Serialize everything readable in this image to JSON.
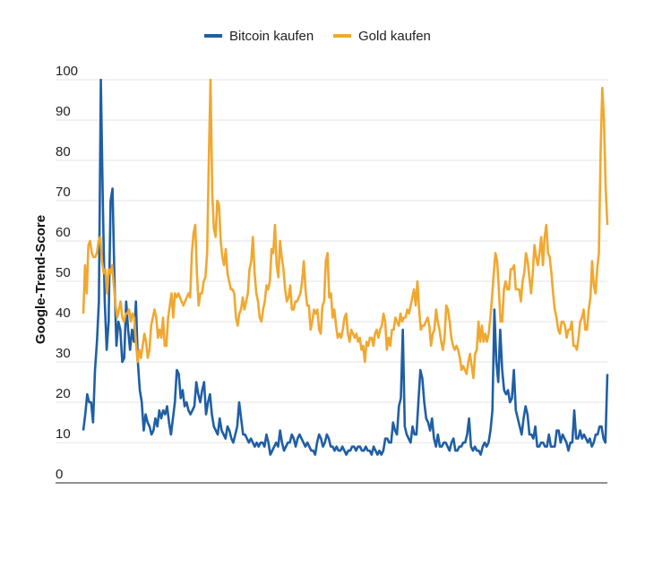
{
  "chart_data": {
    "type": "line",
    "ylabel": "Google-Trend-Score",
    "ylim": [
      0,
      100
    ],
    "yticks": [
      0,
      10,
      20,
      30,
      40,
      50,
      60,
      70,
      80,
      90,
      100
    ],
    "grid": true,
    "legend_position": "top-center",
    "series": [
      {
        "name": "Bitcoin kaufen",
        "color": "#1f5fa5",
        "values": [
          13,
          17,
          22,
          20,
          20,
          15,
          28,
          35,
          45,
          100,
          70,
          45,
          33,
          40,
          70,
          73,
          50,
          34,
          40,
          38,
          30,
          31,
          45,
          38,
          33,
          38,
          35,
          45,
          30,
          23,
          20,
          13,
          17,
          15,
          14,
          12,
          13,
          16,
          14,
          18,
          16,
          18,
          17,
          19,
          15,
          12,
          16,
          20,
          28,
          27,
          21,
          23,
          19,
          20,
          18,
          17,
          18,
          19,
          25,
          22,
          20,
          23,
          25,
          17,
          20,
          22,
          17,
          14,
          13,
          12,
          16,
          13,
          12,
          11,
          14,
          13,
          11,
          10,
          12,
          14,
          20,
          16,
          12,
          12,
          11,
          10,
          11,
          10,
          9,
          10,
          9,
          10,
          10,
          9,
          12,
          10,
          7,
          8,
          9,
          10,
          9,
          13,
          10,
          8,
          9,
          10,
          10,
          12,
          11,
          9,
          11,
          12,
          11,
          10,
          9,
          10,
          9,
          8,
          8,
          7,
          10,
          12,
          11,
          9,
          10,
          12,
          11,
          9,
          9,
          8,
          9,
          8,
          8,
          9,
          8,
          7,
          8,
          8,
          9,
          9,
          8,
          9,
          9,
          8,
          8,
          9,
          8,
          8,
          7,
          9,
          8,
          7,
          8,
          7,
          8,
          11,
          11,
          10,
          10,
          15,
          13,
          12,
          19,
          21,
          38,
          14,
          12,
          11,
          10,
          14,
          12,
          12,
          20,
          28,
          26,
          20,
          16,
          15,
          13,
          16,
          11,
          9,
          12,
          9,
          9,
          10,
          10,
          9,
          8,
          10,
          11,
          8,
          8,
          9,
          9,
          10,
          10,
          12,
          16,
          9,
          8,
          9,
          8,
          8,
          7,
          9,
          10,
          9,
          10,
          13,
          18,
          43,
          30,
          25,
          38,
          28,
          23,
          22,
          23,
          20,
          21,
          28,
          18,
          16,
          14,
          12,
          16,
          19,
          17,
          12,
          12,
          11,
          14,
          9,
          9,
          10,
          10,
          9,
          9,
          12,
          9,
          9,
          9,
          13,
          13,
          10,
          12,
          11,
          10,
          8,
          10,
          10,
          18,
          11,
          11,
          13,
          11,
          12,
          11,
          10,
          11,
          9,
          10,
          12,
          12,
          14,
          14,
          11,
          10,
          27
        ]
      },
      {
        "name": "Gold kaufen",
        "color": "#f0a830",
        "values": [
          42,
          54,
          47,
          59,
          60,
          57,
          56,
          56,
          57,
          60,
          61,
          55,
          52,
          53,
          47,
          53,
          52,
          54,
          49,
          44,
          41,
          43,
          45,
          41,
          40,
          42,
          42,
          43,
          40,
          42,
          41,
          35,
          30,
          33,
          31,
          34,
          37,
          35,
          31,
          33,
          39,
          41,
          43,
          41,
          36,
          38,
          36,
          41,
          34,
          34,
          41,
          44,
          47,
          41,
          47,
          46,
          47,
          46,
          45,
          44,
          45,
          46,
          47,
          46,
          57,
          62,
          64,
          52,
          44,
          47,
          47,
          50,
          51,
          57,
          80,
          100,
          72,
          63,
          61,
          70,
          69,
          60,
          56,
          54,
          58,
          52,
          50,
          48,
          48,
          47,
          41,
          39,
          42,
          43,
          46,
          43,
          45,
          47,
          53,
          55,
          61,
          52,
          47,
          45,
          41,
          40,
          43,
          45,
          49,
          48,
          50,
          58,
          57,
          64,
          54,
          51,
          60,
          56,
          53,
          48,
          45,
          46,
          49,
          43,
          43,
          45,
          45,
          46,
          47,
          50,
          55,
          48,
          44,
          44,
          38,
          40,
          43,
          42,
          43,
          38,
          37,
          44,
          45,
          55,
          57,
          46,
          47,
          41,
          43,
          39,
          36,
          37,
          36,
          38,
          41,
          42,
          37,
          35,
          38,
          37,
          36,
          37,
          35,
          36,
          33,
          34,
          30,
          35,
          34,
          36,
          36,
          34,
          37,
          38,
          36,
          38,
          39,
          42,
          40,
          33,
          36,
          34,
          38,
          38,
          41,
          40,
          39,
          42,
          40,
          41,
          41,
          43,
          42,
          44,
          46,
          48,
          44,
          50,
          43,
          38,
          39,
          39,
          40,
          41,
          39,
          34,
          37,
          38,
          43,
          40,
          38,
          35,
          33,
          36,
          44,
          43,
          40,
          36,
          34,
          33,
          34,
          33,
          31,
          28,
          29,
          28,
          27,
          30,
          32,
          29,
          26,
          32,
          33,
          40,
          35,
          39,
          35,
          37,
          35,
          37,
          41,
          46,
          52,
          57,
          55,
          48,
          40,
          40,
          48,
          50,
          48,
          48,
          53,
          53,
          54,
          48,
          48,
          48,
          45,
          50,
          52,
          57,
          55,
          51,
          47,
          52,
          59,
          56,
          54,
          57,
          61,
          54,
          61,
          64,
          57,
          56,
          52,
          47,
          43,
          41,
          38,
          37,
          40,
          40,
          39,
          36,
          38,
          38,
          40,
          34,
          34,
          33,
          36,
          40,
          41,
          43,
          38,
          38,
          43,
          46,
          55,
          49,
          47,
          53,
          57,
          82,
          98,
          90,
          73,
          64
        ]
      }
    ]
  }
}
